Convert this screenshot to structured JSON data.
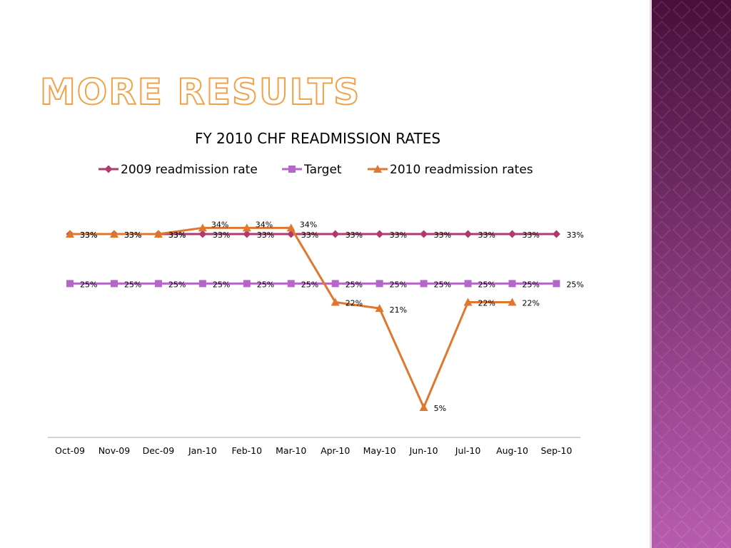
{
  "slide": {
    "title": "More Results"
  },
  "colors": {
    "series_2009": "#b03a6e",
    "target": "#b566c8",
    "series_2010": "#e0772e",
    "axis": "#a8a8a8",
    "title_outline": "#f0a24a",
    "side_dark": "#4a0f3c",
    "side_light": "#b65cae"
  },
  "chart_data": {
    "type": "line",
    "title": "FY 2010 CHF READMISSION RATES",
    "xlabel": "",
    "ylabel": "",
    "categories": [
      "Oct-09",
      "Nov-09",
      "Dec-09",
      "Jan-10",
      "Feb-10",
      "Mar-10",
      "Apr-10",
      "May-10",
      "Jun-10",
      "Jul-10",
      "Aug-10",
      "Sep-10"
    ],
    "ylim": [
      0,
      40
    ],
    "grid": false,
    "legend_position": "top",
    "series": [
      {
        "name": "2009 readmission rate",
        "marker": "diamond",
        "color": "#b03a6e",
        "values": [
          33,
          33,
          33,
          33,
          33,
          33,
          33,
          33,
          33,
          33,
          33,
          33
        ],
        "labels": [
          "33%",
          "33%",
          "33%",
          "33%",
          "33%",
          "33%",
          "33%",
          "33%",
          "33%",
          "33%",
          "33%",
          "33%"
        ]
      },
      {
        "name": "Target",
        "marker": "square",
        "color": "#b566c8",
        "values": [
          25,
          25,
          25,
          25,
          25,
          25,
          25,
          25,
          25,
          25,
          25,
          25
        ],
        "labels": [
          "25%",
          "25%",
          "25%",
          "25%",
          "25%",
          "25%",
          "25%",
          "25%",
          "25%",
          "25%",
          "25%",
          "25%"
        ]
      },
      {
        "name": "2010 readmission rates",
        "marker": "triangle",
        "color": "#e0772e",
        "values": [
          33,
          33,
          33,
          34,
          34,
          34,
          22,
          21,
          5,
          22,
          22,
          null
        ],
        "labels": [
          "33%",
          "33%",
          "33%",
          "34%",
          "34%",
          "34%",
          "22%",
          "21%",
          "5%",
          "22%",
          "22%",
          null
        ]
      }
    ]
  }
}
